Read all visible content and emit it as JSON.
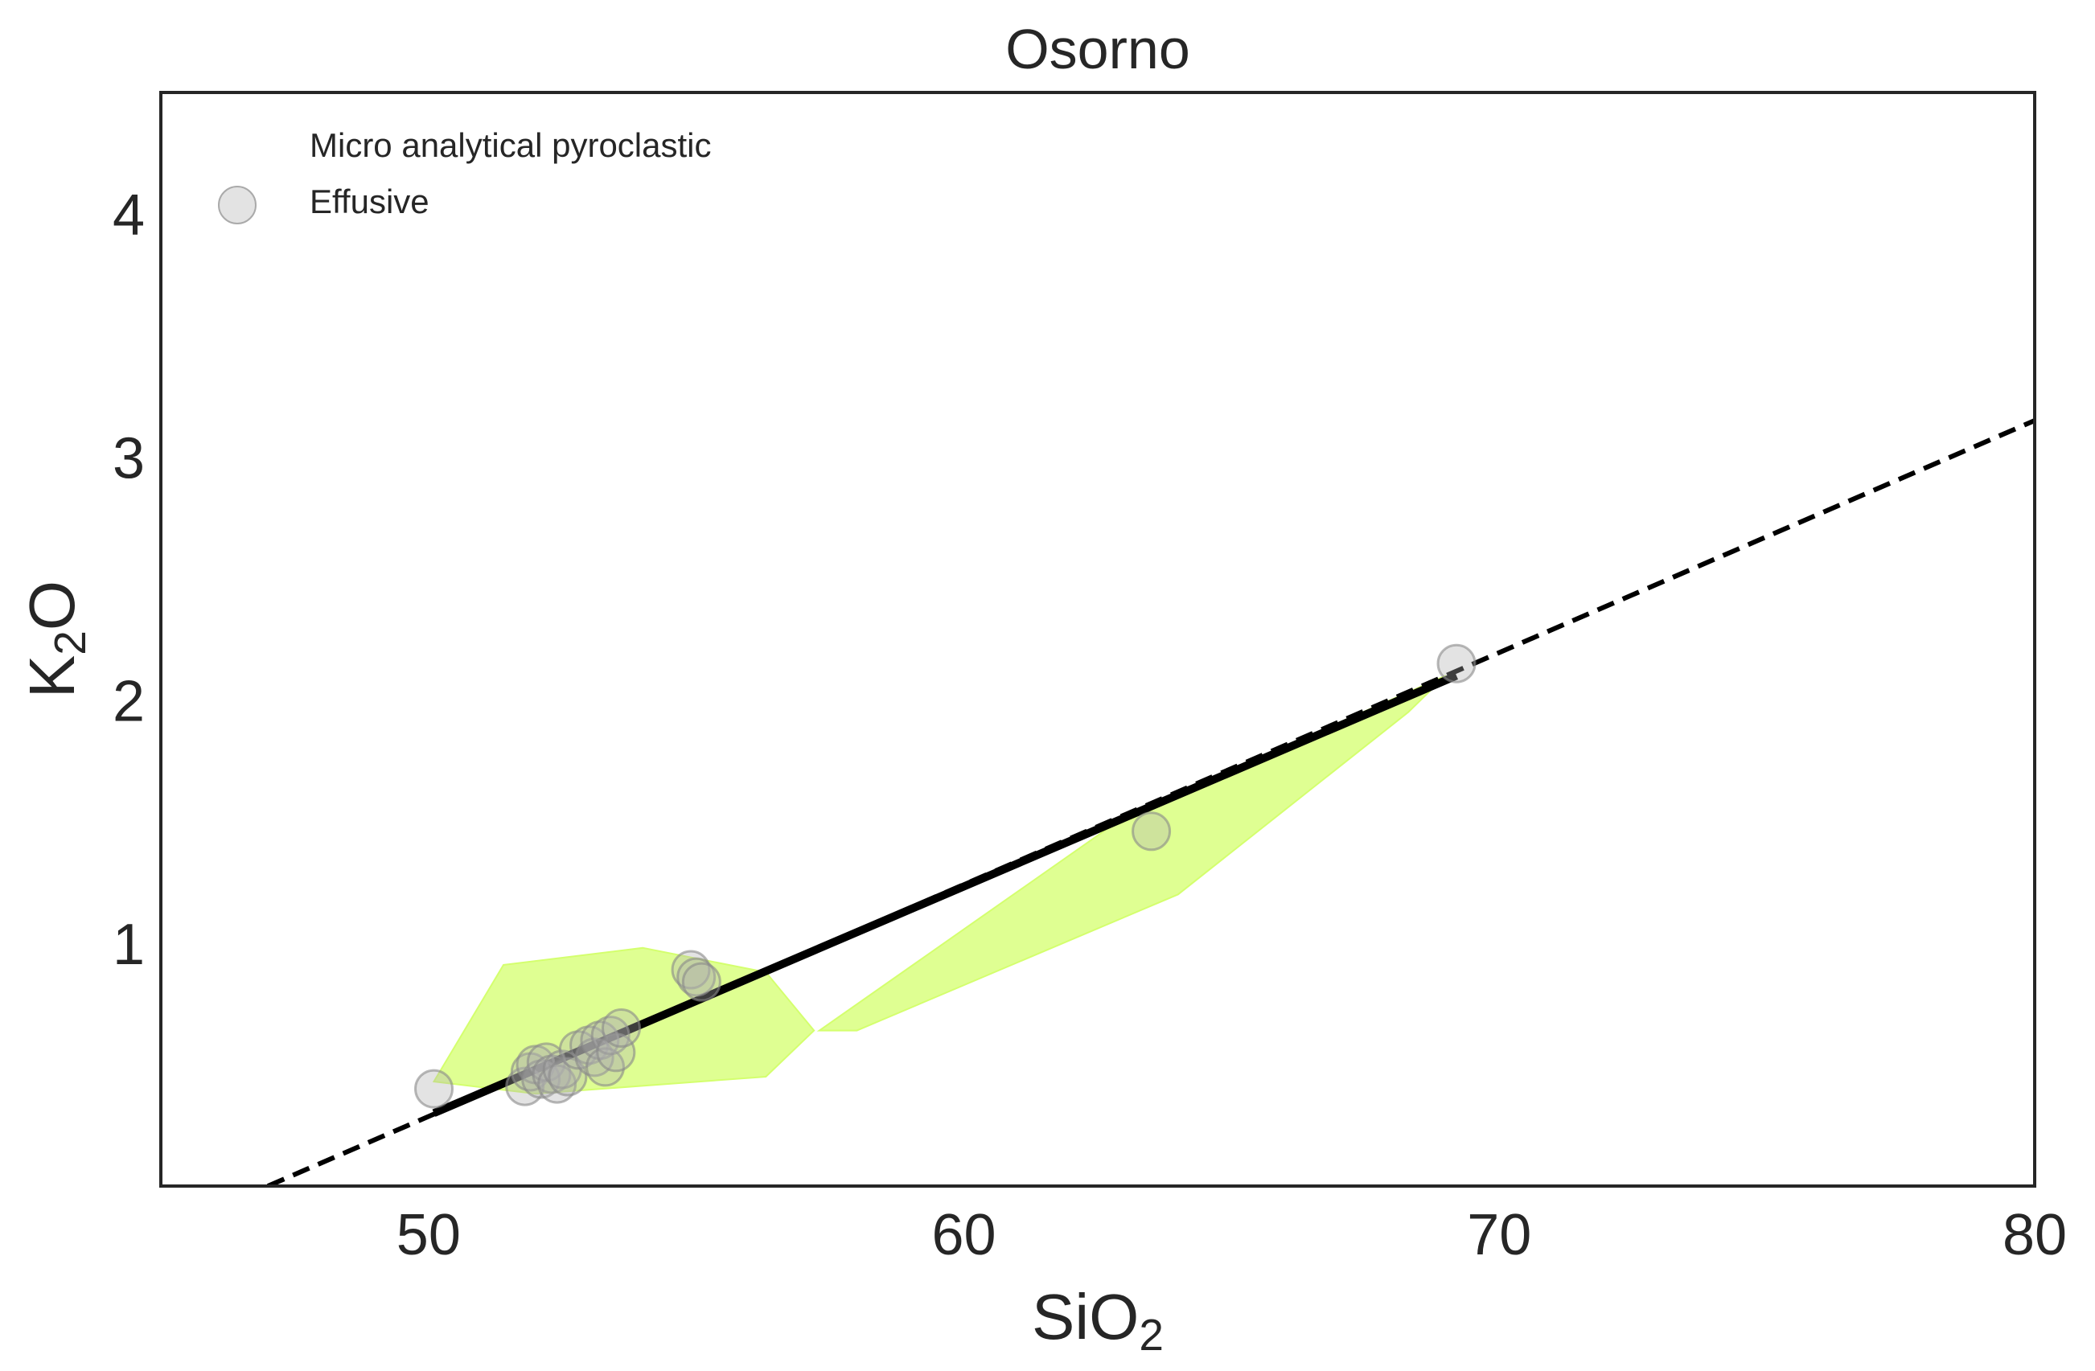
{
  "chart_data": {
    "type": "scatter",
    "title": "Osorno",
    "xlabel": {
      "main": "SiO",
      "sub": "2"
    },
    "ylabel": {
      "pre": "K",
      "sub": "2",
      "post": "O"
    },
    "xlim": [
      45,
      80
    ],
    "ylim": [
      0,
      4.5
    ],
    "x_ticks": [
      50,
      60,
      70,
      80
    ],
    "y_ticks": [
      1,
      2,
      3,
      4
    ],
    "grid": false,
    "legend": {
      "placement": "top-left",
      "entries": [
        {
          "label": "Micro analytical pyroclastic",
          "marker": "none"
        },
        {
          "label": "Effusive",
          "marker": "circle",
          "color": "#cccccc"
        }
      ]
    },
    "series": [
      {
        "name": "Effusive",
        "type": "scatter",
        "color": "#b0b0b0",
        "edge_color": "#888888",
        "opacity": 0.35,
        "points": [
          [
            50.1,
            0.4
          ],
          [
            51.8,
            0.41
          ],
          [
            51.9,
            0.47
          ],
          [
            52.0,
            0.5
          ],
          [
            52.1,
            0.44
          ],
          [
            52.2,
            0.51
          ],
          [
            52.3,
            0.46
          ],
          [
            52.4,
            0.42
          ],
          [
            52.5,
            0.48
          ],
          [
            52.6,
            0.45
          ],
          [
            52.8,
            0.56
          ],
          [
            53.0,
            0.58
          ],
          [
            53.1,
            0.53
          ],
          [
            53.2,
            0.6
          ],
          [
            53.3,
            0.49
          ],
          [
            53.4,
            0.62
          ],
          [
            53.5,
            0.55
          ],
          [
            53.6,
            0.65
          ],
          [
            54.9,
            0.89
          ],
          [
            55.0,
            0.86
          ],
          [
            55.1,
            0.84
          ],
          [
            63.5,
            1.46
          ],
          [
            69.2,
            2.15
          ]
        ]
      }
    ],
    "field_polygons": [
      {
        "color": "#d4ff6e",
        "opacity": 0.75,
        "points": [
          [
            50.1,
            0.43
          ],
          [
            51.4,
            0.91
          ],
          [
            54.0,
            0.98
          ],
          [
            56.3,
            0.88
          ],
          [
            57.2,
            0.64
          ],
          [
            56.3,
            0.45
          ],
          [
            52.0,
            0.38
          ]
        ]
      },
      {
        "color": "#d4ff6e",
        "opacity": 0.75,
        "points": [
          [
            57.3,
            0.64
          ],
          [
            58.0,
            0.64
          ],
          [
            64.0,
            1.2
          ],
          [
            68.3,
            1.95
          ],
          [
            69.0,
            2.1
          ],
          [
            63.0,
            1.52
          ]
        ]
      }
    ],
    "lines": [
      {
        "style": "solid",
        "color": "#000000",
        "points": [
          [
            50.1,
            0.3
          ],
          [
            69.2,
            2.1
          ]
        ]
      },
      {
        "style": "dashed",
        "color": "#000000",
        "points": [
          [
            47.0,
            0.0
          ],
          [
            80.0,
            3.15
          ]
        ]
      }
    ]
  }
}
